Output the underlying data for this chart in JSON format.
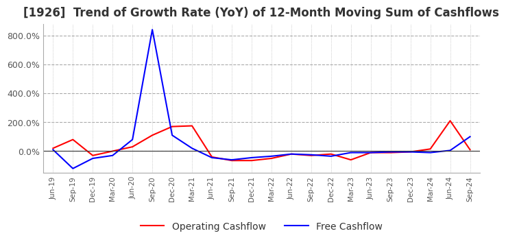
{
  "title": "[1926]  Trend of Growth Rate (YoY) of 12-Month Moving Sum of Cashflows",
  "title_fontsize": 12,
  "title_color": "#333333",
  "ylim": [
    -150,
    880
  ],
  "yticks": [
    0,
    200,
    400,
    600,
    800
  ],
  "ytick_labels": [
    "0.0%",
    "200.0%",
    "400.0%",
    "600.0%",
    "800.0%"
  ],
  "background_color": "#ffffff",
  "grid_color": "#aaaaaa",
  "line_operating_color": "#ff0000",
  "line_free_color": "#0000ff",
  "legend_labels": [
    "Operating Cashflow",
    "Free Cashflow"
  ],
  "x_labels": [
    "Jun-19",
    "Sep-19",
    "Dec-19",
    "Mar-20",
    "Jun-20",
    "Sep-20",
    "Dec-20",
    "Mar-21",
    "Jun-21",
    "Sep-21",
    "Dec-21",
    "Mar-22",
    "Jun-22",
    "Sep-22",
    "Dec-22",
    "Mar-23",
    "Jun-23",
    "Sep-23",
    "Dec-23",
    "Mar-24",
    "Jun-24",
    "Sep-24"
  ],
  "operating_cashflow": [
    20,
    80,
    -30,
    0,
    30,
    110,
    170,
    175,
    -40,
    -65,
    -65,
    -50,
    -20,
    -30,
    -20,
    -60,
    -10,
    -10,
    -5,
    15,
    210,
    10
  ],
  "free_cashflow": [
    10,
    -120,
    -50,
    -30,
    80,
    840,
    110,
    20,
    -45,
    -60,
    -45,
    -35,
    -20,
    -25,
    -35,
    -10,
    -10,
    -5,
    -5,
    -10,
    5,
    100
  ]
}
